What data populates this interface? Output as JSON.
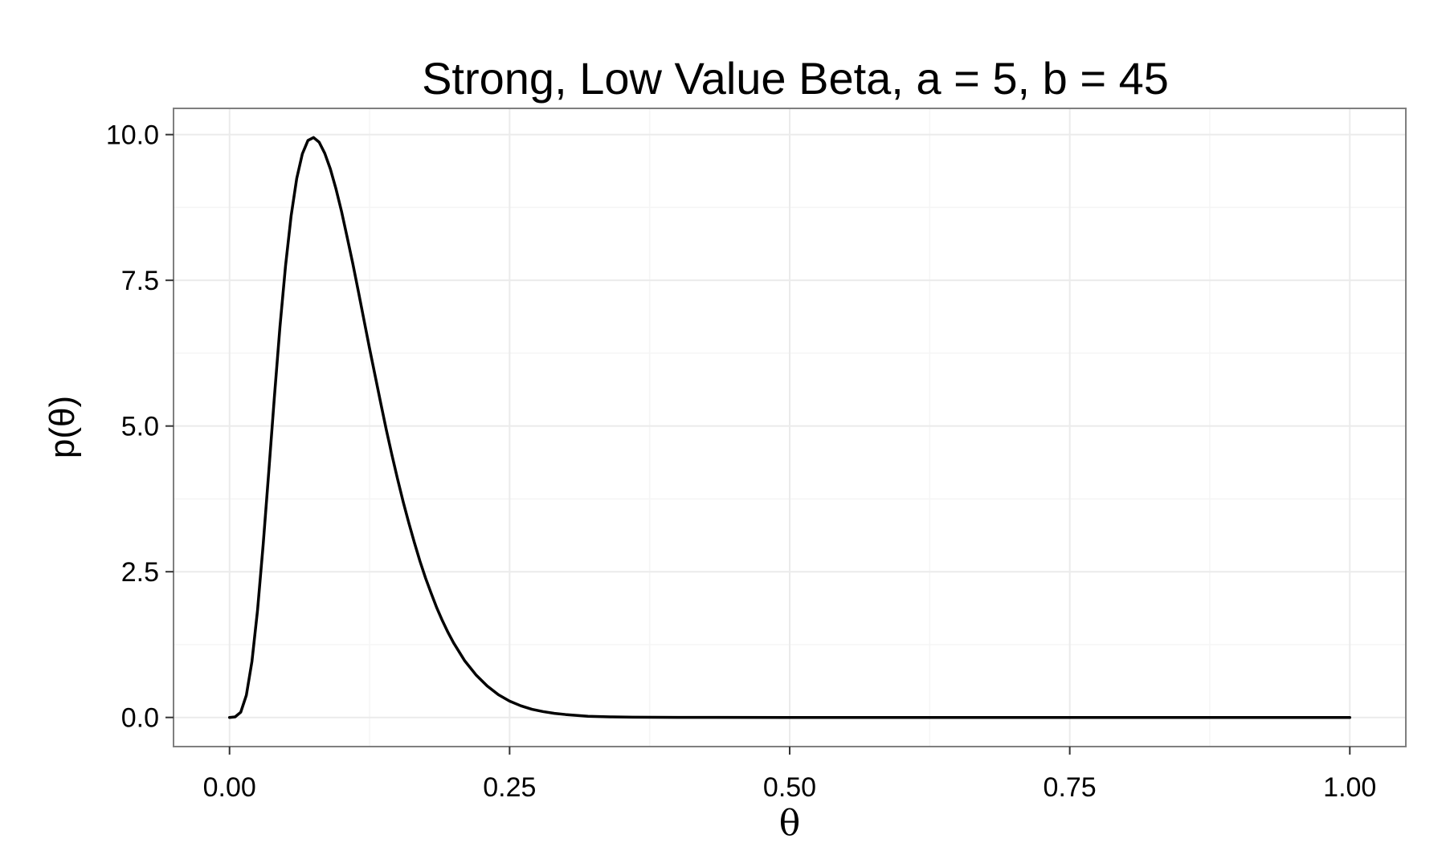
{
  "chart_data": {
    "type": "line",
    "title": "Strong, Low Value Beta, a = 5, b = 45",
    "xlabel": "θ",
    "ylabel": "p(θ)",
    "xlim": [
      -0.05,
      1.05
    ],
    "ylim": [
      -0.5,
      10.45
    ],
    "x_ticks": [
      0,
      0.25,
      0.5,
      0.75,
      1
    ],
    "x_tick_labels": [
      "0.00",
      "0.25",
      "0.50",
      "0.75",
      "1.00"
    ],
    "y_ticks": [
      0,
      2.5,
      5,
      7.5,
      10
    ],
    "y_tick_labels": [
      "0.0",
      "2.5",
      "5.0",
      "7.5",
      "10.0"
    ],
    "grid": true,
    "legend": "none",
    "colors": {
      "panel_background": "#ffffff",
      "panel_border": "#7f7f7f",
      "grid_major": "#ebebeb",
      "grid_minor": "#f5f5f5",
      "line": "#000000"
    },
    "series": [
      {
        "distribution": "beta",
        "shape_a": 5,
        "shape_b": 45,
        "x": [
          0,
          0.005,
          0.01,
          0.015,
          0.02,
          0.025,
          0.03,
          0.035,
          0.04,
          0.045,
          0.05,
          0.055,
          0.06,
          0.065,
          0.07,
          0.075,
          0.08,
          0.085,
          0.09,
          0.095,
          0.1,
          0.105,
          0.11,
          0.115,
          0.12,
          0.125,
          0.13,
          0.135,
          0.14,
          0.145,
          0.15,
          0.155,
          0.16,
          0.165,
          0.17,
          0.175,
          0.18,
          0.185,
          0.19,
          0.195,
          0.2,
          0.21,
          0.22,
          0.23,
          0.24,
          0.25,
          0.26,
          0.27,
          0.28,
          0.29,
          0.3,
          0.32,
          0.34,
          0.36,
          0.4,
          0.5,
          0.6,
          0.7,
          0.8,
          0.9,
          1
        ],
        "y": [
          0,
          0.01,
          0.09,
          0.38,
          0.96,
          1.84,
          2.96,
          4.21,
          5.49,
          6.7,
          7.75,
          8.61,
          9.25,
          9.67,
          9.9,
          9.95,
          9.87,
          9.68,
          9.41,
          9.07,
          8.68,
          8.24,
          7.79,
          7.31,
          6.82,
          6.33,
          5.86,
          5.39,
          4.93,
          4.5,
          4.09,
          3.7,
          3.34,
          3,
          2.68,
          2.39,
          2.13,
          1.88,
          1.66,
          1.46,
          1.28,
          0.97,
          0.73,
          0.54,
          0.39,
          0.28,
          0.2,
          0.14,
          0.1,
          0.07,
          0.05,
          0.02,
          0.01,
          0.004,
          0.001,
          0,
          0,
          0,
          0,
          0,
          0
        ]
      }
    ]
  }
}
